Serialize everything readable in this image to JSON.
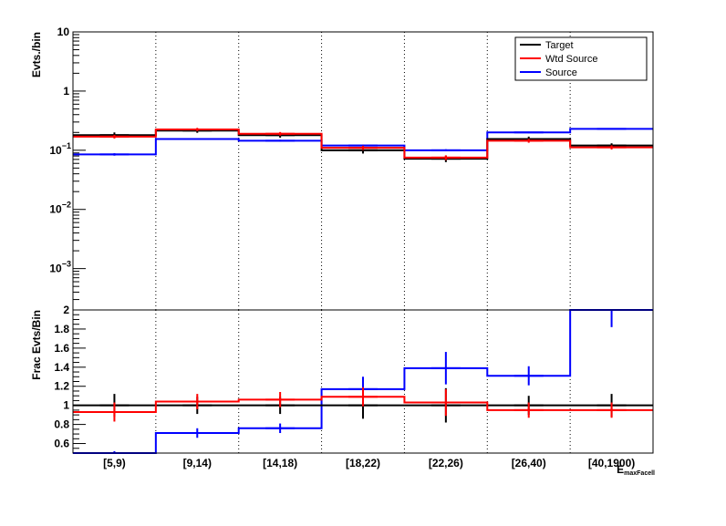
{
  "chart_data": [
    {
      "type": "line",
      "panel": "top",
      "ylabel": "Evts./bin",
      "yscale": "log",
      "ylim": [
        0.0002,
        10
      ],
      "y_ticks": [
        {
          "value": 10,
          "base": "10",
          "exp": ""
        },
        {
          "value": 1,
          "base": "1",
          "exp": ""
        },
        {
          "value": 0.1,
          "base": "10",
          "exp": "−1"
        },
        {
          "value": 0.01,
          "base": "10",
          "exp": "−2"
        },
        {
          "value": 0.001,
          "base": "10",
          "exp": "−3"
        }
      ],
      "grid_x": true,
      "legend": {
        "position": "top-right",
        "entries": [
          {
            "label": "Target",
            "color": "#000000"
          },
          {
            "label": "Wtd Source",
            "color": "#ff0000"
          },
          {
            "label": "Source",
            "color": "#0000ff"
          }
        ]
      },
      "categories": [
        "[5,9)",
        "[9,14)",
        "[14,18)",
        "[18,22)",
        "[22,26)",
        "[26,40)",
        "[40,1900)"
      ],
      "series": [
        {
          "name": "Target",
          "color": "#000000",
          "values": [
            0.18,
            0.215,
            0.18,
            0.1,
            0.072,
            0.155,
            0.12
          ],
          "errors": [
            0.02,
            0.018,
            0.017,
            0.012,
            0.009,
            0.015,
            0.011
          ]
        },
        {
          "name": "Wtd Source",
          "color": "#ff0000",
          "values": [
            0.17,
            0.225,
            0.19,
            0.11,
            0.075,
            0.145,
            0.112
          ],
          "errors": [
            0.012,
            0.014,
            0.013,
            0.009,
            0.007,
            0.011,
            0.009
          ]
        },
        {
          "name": "Source",
          "color": "#0000ff",
          "values": [
            0.085,
            0.155,
            0.145,
            0.12,
            0.1,
            0.2,
            0.23
          ],
          "errors": [
            0.004,
            0.005,
            0.005,
            0.005,
            0.004,
            0.006,
            0.006
          ]
        }
      ]
    },
    {
      "type": "line",
      "panel": "bottom",
      "ylabel": "Frac Evts/Bin",
      "ylim": [
        0.5,
        2.0
      ],
      "y_ticks": [
        0.6,
        0.8,
        1,
        1.2,
        1.4,
        1.6,
        1.8,
        2
      ],
      "xlabel": "E",
      "xlabel_sub": "maxFacell",
      "grid_x": true,
      "categories": [
        "[5,9)",
        "[9,14)",
        "[14,18)",
        "[18,22)",
        "[22,26)",
        "[26,40)",
        "[40,1900)"
      ],
      "series": [
        {
          "name": "Target",
          "color": "#000000",
          "values": [
            1,
            1,
            1,
            1,
            1,
            1,
            1
          ],
          "errors": [
            0.12,
            0.09,
            0.09,
            0.14,
            0.18,
            0.1,
            0.12
          ]
        },
        {
          "name": "Wtd Source",
          "color": "#ff0000",
          "values": [
            0.93,
            1.04,
            1.06,
            1.09,
            1.03,
            0.95,
            0.95
          ],
          "errors": [
            0.1,
            0.08,
            0.08,
            0.1,
            0.14,
            0.08,
            0.08
          ]
        },
        {
          "name": "Source",
          "color": "#0000ff",
          "values": [
            0.48,
            0.71,
            0.76,
            1.17,
            1.39,
            1.31,
            2.0
          ],
          "errors": [
            0.04,
            0.05,
            0.05,
            0.13,
            0.17,
            0.1,
            0.18
          ]
        }
      ]
    }
  ]
}
